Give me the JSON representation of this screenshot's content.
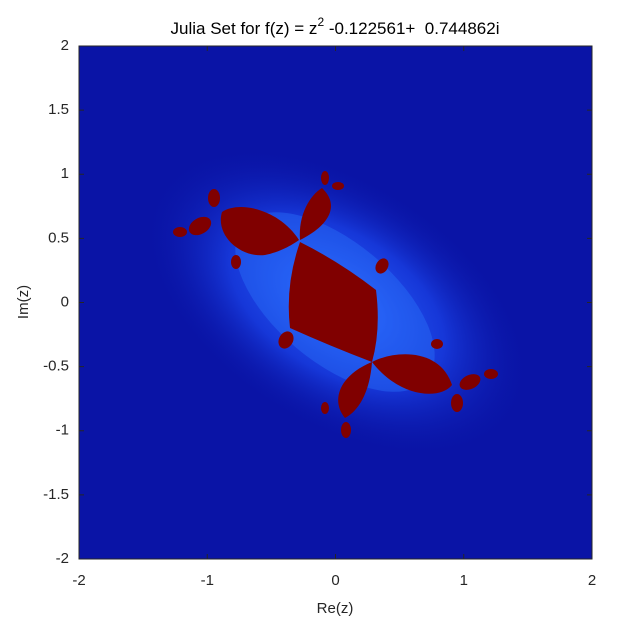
{
  "chart_data": {
    "type": "image",
    "title_main": "Julia Set for f(z) = z",
    "title_exponent": "2",
    "title_tail": " -0.122561+  0.744862i",
    "x_label": "Re(z)",
    "y_label": "Im(z)",
    "xlim": [
      -2,
      2
    ],
    "ylim": [
      -2,
      2
    ],
    "xticks": [
      -2,
      -1,
      0,
      1,
      2
    ],
    "yticks": [
      -2,
      -1.5,
      -1,
      -0.5,
      0,
      0.5,
      1,
      1.5,
      2
    ],
    "background_color": "#0a14a6",
    "set_color": "#800000"
  }
}
